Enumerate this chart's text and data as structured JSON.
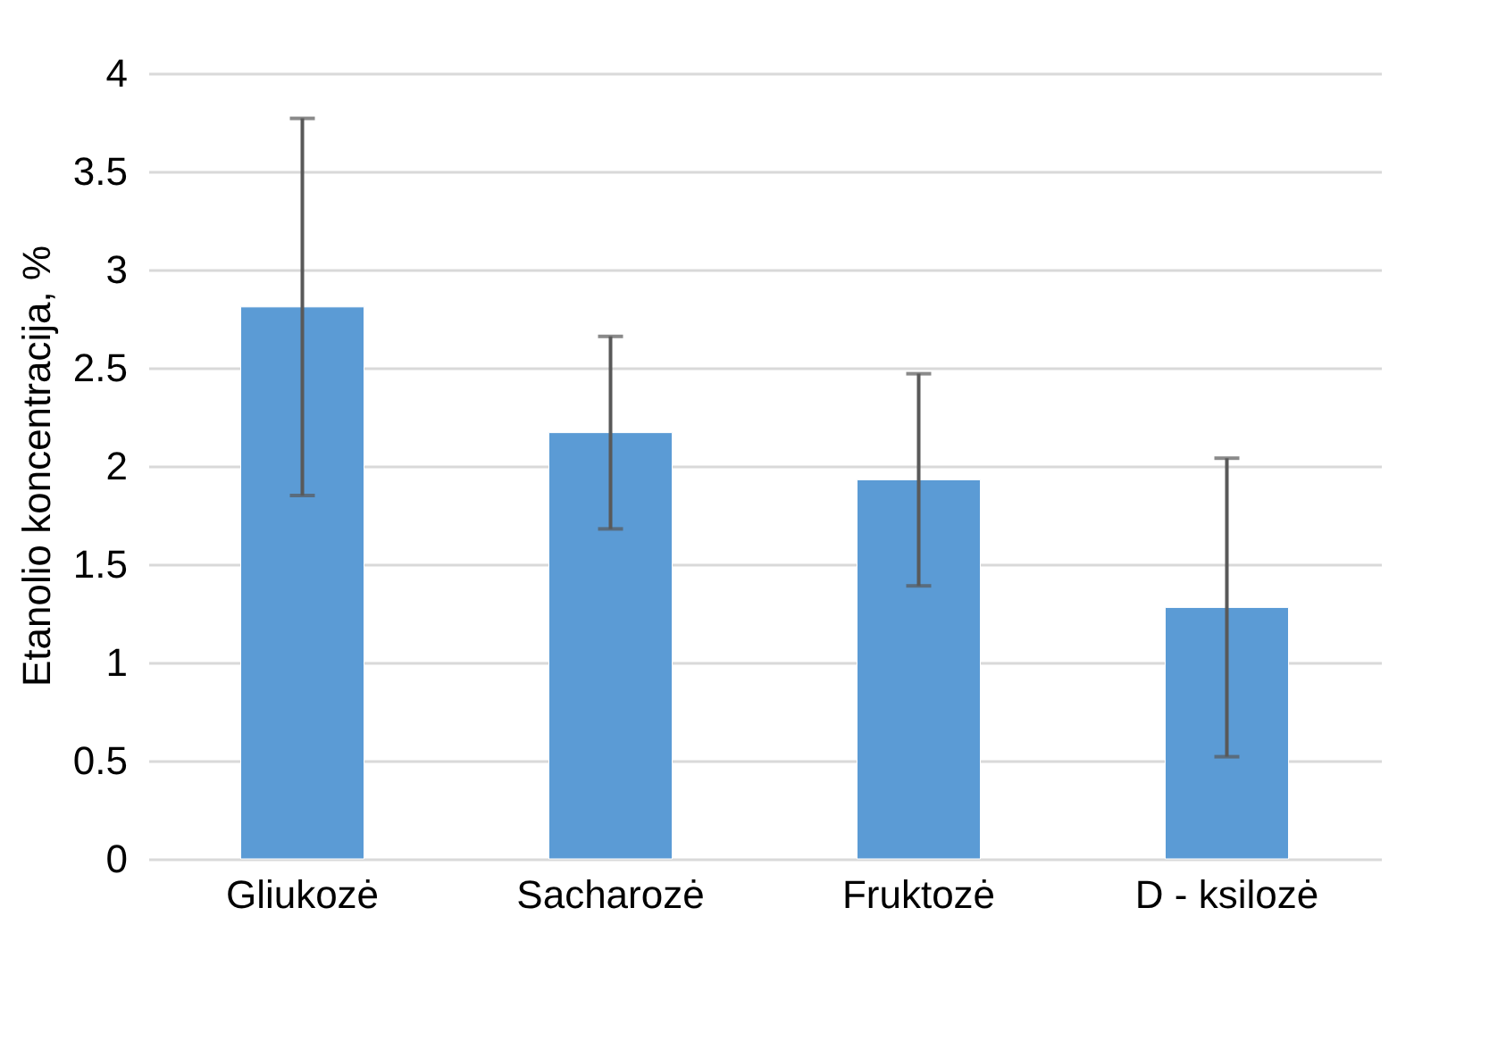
{
  "chart_data": {
    "type": "bar",
    "ylabel": "Etanolio koncentracija, %",
    "categories": [
      "Gliukozė",
      "Sacharozė",
      "Fruktozė",
      "D - ksilozė"
    ],
    "values": [
      2.81,
      2.17,
      1.93,
      1.28
    ],
    "errors": [
      0.96,
      0.49,
      0.54,
      0.76
    ],
    "color": "#5b9bd5",
    "ylim": [
      0,
      4
    ],
    "yticks": [
      0,
      0.5,
      1,
      1.5,
      2,
      2.5,
      3,
      3.5,
      4
    ],
    "grid": "y"
  }
}
